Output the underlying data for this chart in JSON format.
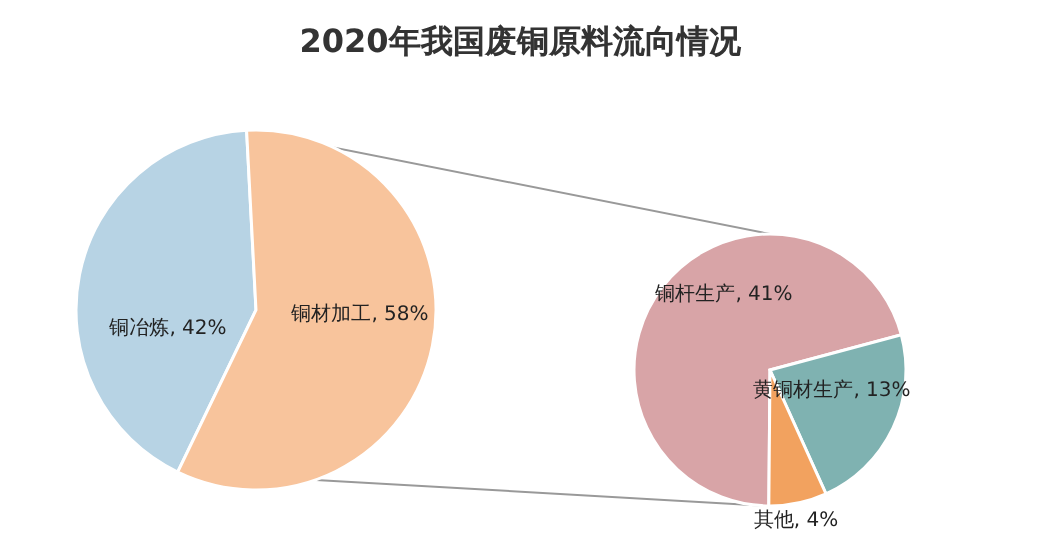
{
  "chart_data": [
    {
      "type": "pie",
      "title": "2020年我国废铜原料流向情况",
      "categories": [
        "铜冶炼",
        "铜材加工"
      ],
      "values": [
        42,
        58
      ],
      "value_labels": [
        "42%",
        "58%"
      ],
      "colors": [
        "#b7d3e4",
        "#f8c49c"
      ]
    },
    {
      "type": "pie",
      "categories": [
        "铜杆生产",
        "黄铜材生产",
        "其他"
      ],
      "values": [
        41,
        13,
        4
      ],
      "value_labels": [
        "41%",
        "13%",
        "4%"
      ],
      "colors": [
        "#d8a4a7",
        "#7fb2b1",
        "#f2a25f"
      ]
    }
  ]
}
